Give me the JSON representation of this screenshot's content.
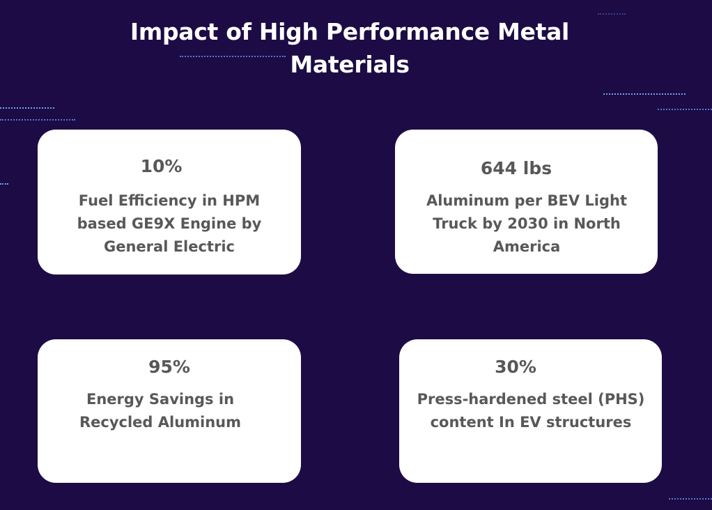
{
  "title": "Impact of High Performance Metal Materials",
  "cards": [
    {
      "stat": "10%",
      "description": "Fuel Efficiency in HPM based GE9X Engine by General Electric"
    },
    {
      "stat": "644 lbs",
      "description": "Aluminum per BEV Light Truck by 2030 in North America"
    },
    {
      "stat": "95%",
      "description": "Energy Savings in Recycled Aluminum"
    },
    {
      "stat": "30%",
      "description": "Press-hardened steel (PHS) content In EV structures"
    }
  ],
  "colors": {
    "background": "#1d0b45",
    "card": "#ffffff",
    "card_text": "#585858",
    "title_text": "#ffffff",
    "decoration": "#4f7fd0"
  }
}
